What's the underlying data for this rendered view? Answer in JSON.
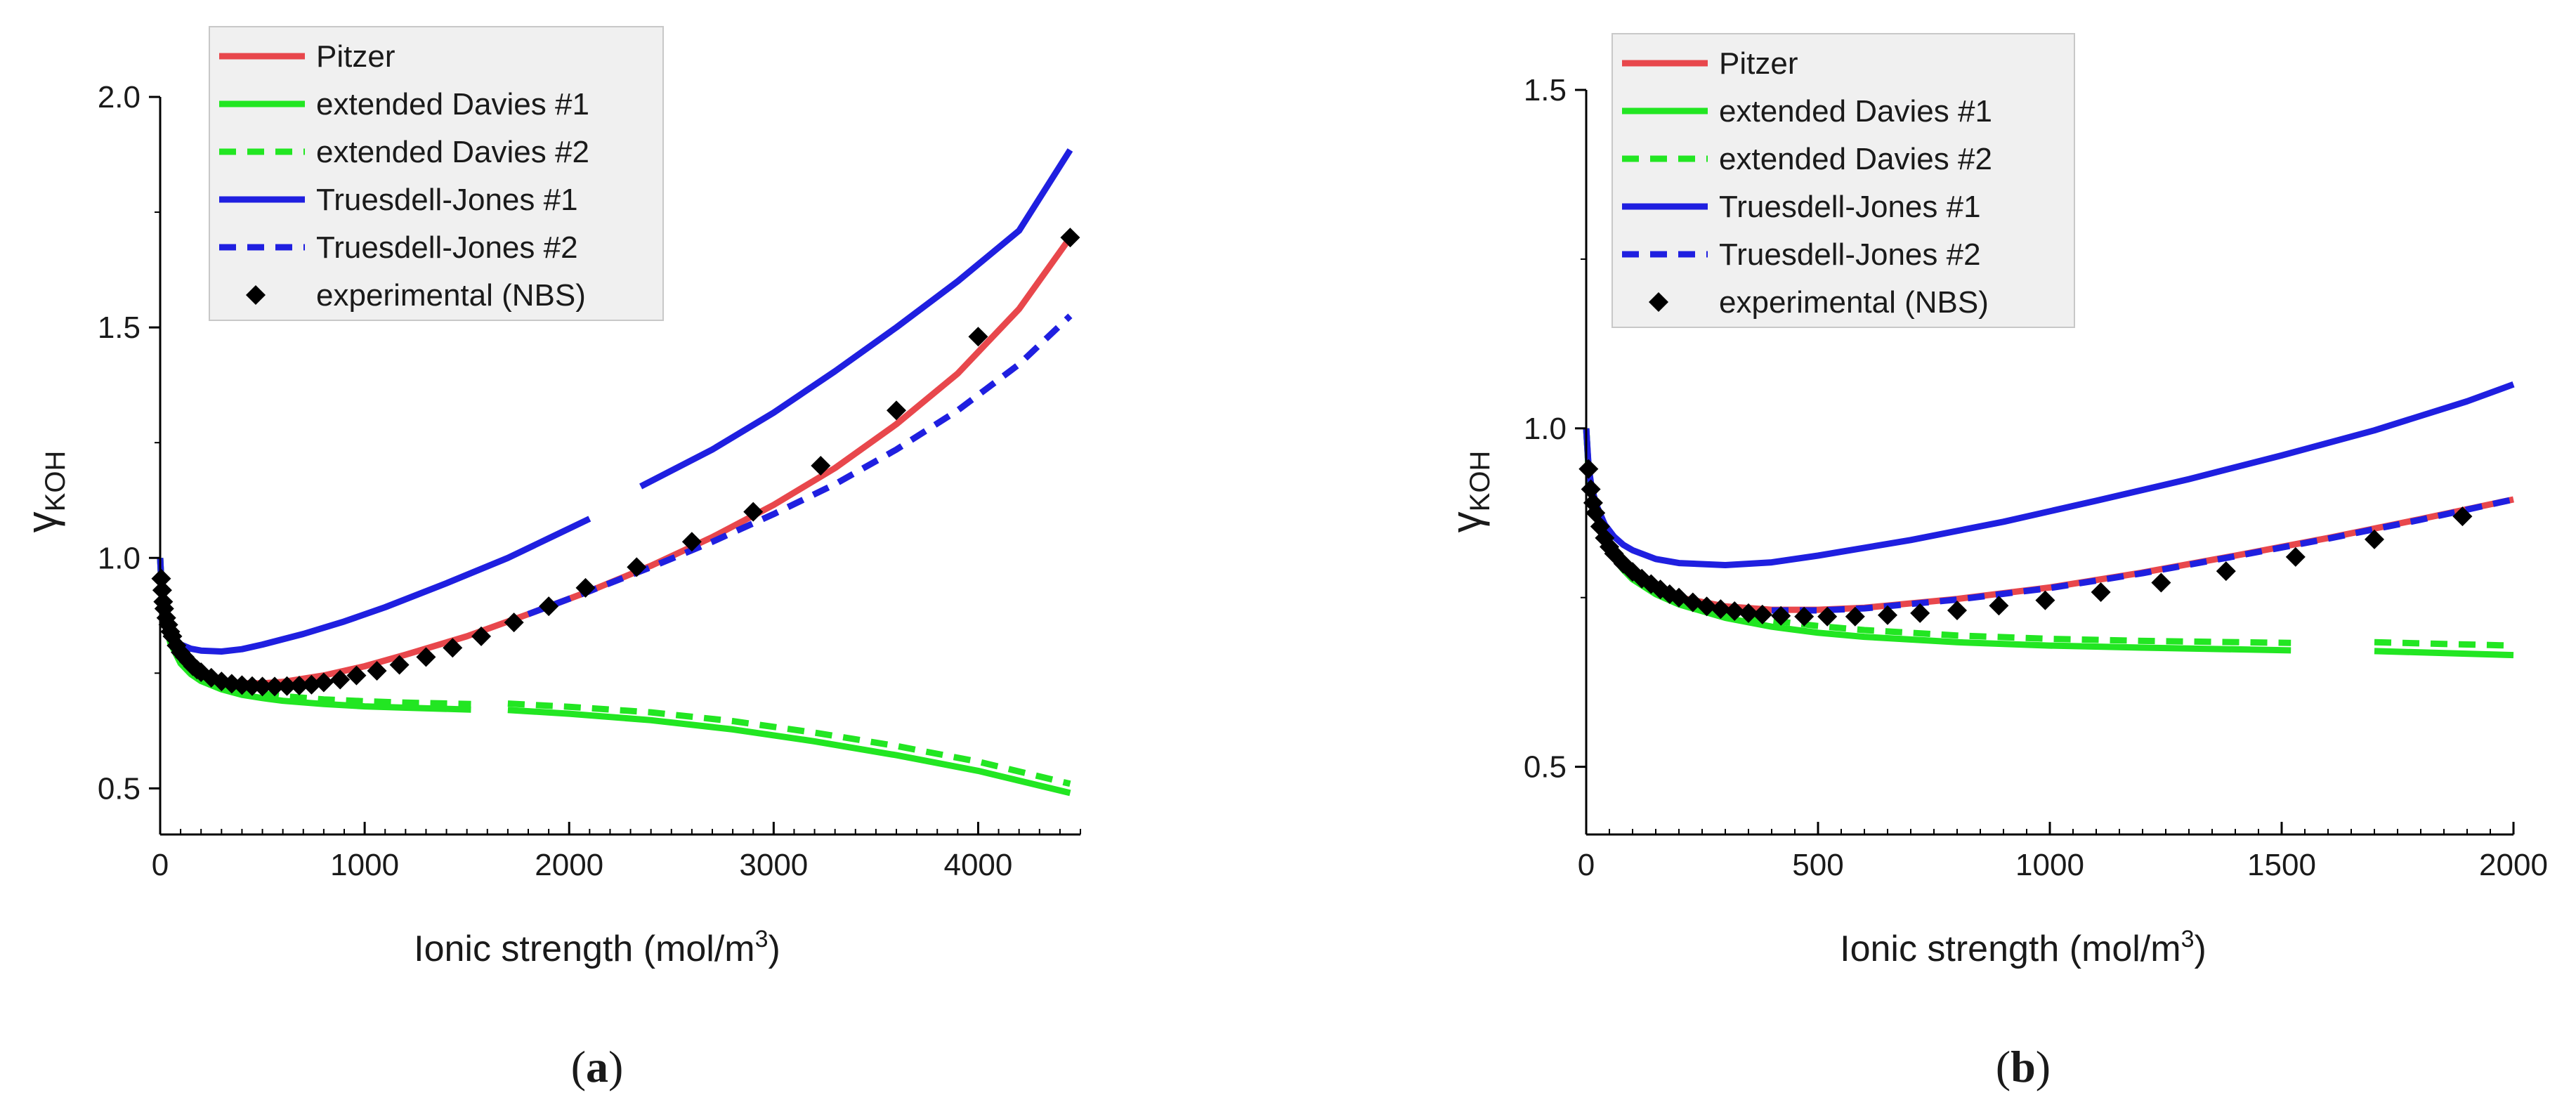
{
  "chart_data": [
    {
      "type": "line",
      "panel_label": "(a)",
      "panel_letter": "a",
      "xlabel": "Ionic strength (mol/m",
      "xlabel_sup": "3",
      "xlabel_end": ")",
      "ylabel_main": "γ",
      "ylabel_sub": "KOH",
      "xlim": [
        0,
        4500
      ],
      "ylim": [
        0.4,
        2.0
      ],
      "xticks": [
        0,
        1000,
        2000,
        3000,
        4000
      ],
      "xtick_labels": [
        "0",
        "1000",
        "2000",
        "3000",
        "4000"
      ],
      "xminor_step": 100,
      "yticks": [
        0.5,
        1.0,
        1.5,
        2.0
      ],
      "ytick_labels": [
        "0.5",
        "1.0",
        "1.5",
        "2.0"
      ],
      "legend_position": "top-left",
      "legend": [
        "Pitzer",
        "extended Davies #1",
        "extended Davies #2",
        "Truesdell-Jones #1",
        "Truesdell-Jones #2",
        "experimental (NBS)"
      ],
      "series": [
        {
          "name": "Pitzer",
          "style": "solid",
          "color": "#e8474c",
          "x": [
            0,
            10,
            25,
            50,
            100,
            150,
            200,
            300,
            400,
            500,
            600,
            800,
            1000,
            1200,
            1500,
            1800,
            2100,
            2400,
            2700,
            3000,
            3300,
            3600,
            3900,
            4200,
            4450
          ],
          "y": [
            1.0,
            0.905,
            0.858,
            0.818,
            0.778,
            0.758,
            0.745,
            0.732,
            0.728,
            0.728,
            0.731,
            0.745,
            0.765,
            0.79,
            0.83,
            0.878,
            0.928,
            0.983,
            1.045,
            1.115,
            1.195,
            1.29,
            1.4,
            1.54,
            1.695
          ]
        },
        {
          "name": "extended Davies #1",
          "style": "solid",
          "color": "#22e622",
          "x": [
            0,
            10,
            25,
            50,
            100,
            150,
            200,
            300,
            400,
            500,
            600,
            800,
            1000,
            1200,
            1520,
            null,
            1700,
            2000,
            2400,
            2800,
            3200,
            3600,
            4000,
            4450
          ],
          "y": [
            1.0,
            0.905,
            0.858,
            0.815,
            0.771,
            0.748,
            0.733,
            0.715,
            0.703,
            0.696,
            0.69,
            0.683,
            0.678,
            0.675,
            0.671,
            null,
            0.67,
            0.662,
            0.648,
            0.628,
            0.602,
            0.572,
            0.538,
            0.49
          ]
        },
        {
          "name": "extended Davies #2",
          "style": "dashed",
          "color": "#22e622",
          "x": [
            0,
            10,
            25,
            50,
            100,
            150,
            200,
            300,
            400,
            500,
            600,
            800,
            1000,
            1200,
            1520,
            null,
            1700,
            2000,
            2400,
            2800,
            3200,
            3600,
            4000,
            4450
          ],
          "y": [
            1.0,
            0.906,
            0.86,
            0.818,
            0.775,
            0.753,
            0.739,
            0.723,
            0.712,
            0.706,
            0.7,
            0.693,
            0.689,
            0.686,
            0.683,
            null,
            0.684,
            0.677,
            0.665,
            0.646,
            0.621,
            0.592,
            0.558,
            0.51
          ]
        },
        {
          "name": "Truesdell-Jones #1",
          "style": "solid",
          "color": "#1f1fe0",
          "x": [
            0,
            10,
            25,
            50,
            100,
            150,
            200,
            300,
            400,
            500,
            700,
            900,
            1100,
            1400,
            1700,
            2100,
            null,
            2350,
            2700,
            3000,
            3300,
            3600,
            3900,
            4200,
            4450
          ],
          "y": [
            1.0,
            0.91,
            0.868,
            0.838,
            0.812,
            0.803,
            0.799,
            0.797,
            0.802,
            0.812,
            0.835,
            0.862,
            0.893,
            0.945,
            1.0,
            1.085,
            null,
            1.155,
            1.235,
            1.315,
            1.405,
            1.5,
            1.6,
            1.71,
            1.885
          ]
        },
        {
          "name": "Truesdell-Jones #2",
          "style": "dashed",
          "color": "#1f1fe0",
          "x": [
            1800,
            2100,
            2400,
            2700,
            3000,
            3300,
            3600,
            3900,
            4200,
            4450
          ],
          "y": [
            0.878,
            0.928,
            0.98,
            1.035,
            1.095,
            1.16,
            1.235,
            1.32,
            1.42,
            1.525
          ]
        },
        {
          "name": "experimental (NBS)",
          "style": "markers",
          "color": "#000000",
          "x": [
            5,
            10,
            15,
            20,
            30,
            40,
            50,
            60,
            80,
            100,
            120,
            140,
            160,
            180,
            200,
            250,
            300,
            350,
            400,
            450,
            500,
            560,
            620,
            680,
            740,
            800,
            880,
            960,
            1060,
            1170,
            1300,
            1430,
            1570,
            1730,
            1900,
            2080,
            2330,
            2600,
            2900,
            3230,
            3600,
            4000,
            4450
          ],
          "y": [
            0.955,
            0.93,
            0.905,
            0.89,
            0.87,
            0.855,
            0.84,
            0.83,
            0.81,
            0.795,
            0.785,
            0.775,
            0.765,
            0.758,
            0.752,
            0.74,
            0.732,
            0.727,
            0.724,
            0.722,
            0.721,
            0.721,
            0.722,
            0.723,
            0.725,
            0.73,
            0.736,
            0.745,
            0.755,
            0.768,
            0.785,
            0.805,
            0.83,
            0.86,
            0.895,
            0.935,
            0.98,
            1.035,
            1.1,
            1.2,
            1.32,
            1.48,
            1.695
          ]
        }
      ]
    },
    {
      "type": "line",
      "panel_label": "(b)",
      "panel_letter": "b",
      "xlabel": "Ionic strength (mol/m",
      "xlabel_sup": "3",
      "xlabel_end": ")",
      "ylabel_main": "γ",
      "ylabel_sub": "KOH",
      "xlim": [
        0,
        2000
      ],
      "ylim": [
        0.4,
        1.5
      ],
      "xticks": [
        0,
        500,
        1000,
        1500,
        2000
      ],
      "xtick_labels": [
        "0",
        "500",
        "1000",
        "1500",
        "2000"
      ],
      "xminor_step": 50,
      "yticks": [
        0.5,
        1.0,
        1.5
      ],
      "ytick_labels": [
        "0.5",
        "1.0",
        "1.5"
      ],
      "legend_position": "top-left",
      "legend": [
        "Pitzer",
        "extended Davies #1",
        "extended Davies #2",
        "Truesdell-Jones #1",
        "Truesdell-Jones #2",
        "experimental (NBS)"
      ],
      "series": [
        {
          "name": "Pitzer",
          "style": "solid",
          "color": "#e8474c",
          "x": [
            0,
            5,
            10,
            20,
            40,
            60,
            80,
            100,
            150,
            200,
            300,
            400,
            500,
            600,
            800,
            1000,
            1200,
            1400,
            1600,
            1800,
            2000
          ],
          "y": [
            1.0,
            0.94,
            0.91,
            0.875,
            0.835,
            0.812,
            0.795,
            0.782,
            0.762,
            0.75,
            0.737,
            0.732,
            0.732,
            0.735,
            0.748,
            0.765,
            0.787,
            0.812,
            0.838,
            0.866,
            0.895
          ]
        },
        {
          "name": "extended Davies #1",
          "style": "solid",
          "color": "#22e622",
          "x": [
            0,
            5,
            10,
            20,
            40,
            60,
            80,
            100,
            150,
            200,
            300,
            400,
            500,
            600,
            800,
            1000,
            1200,
            1520,
            null,
            1700,
            2000
          ],
          "y": [
            1.0,
            0.94,
            0.91,
            0.874,
            0.832,
            0.808,
            0.791,
            0.777,
            0.755,
            0.74,
            0.72,
            0.707,
            0.698,
            0.692,
            0.684,
            0.679,
            0.676,
            0.672,
            null,
            0.671,
            0.665
          ]
        },
        {
          "name": "extended Davies #2",
          "style": "dashed",
          "color": "#22e622",
          "x": [
            0,
            5,
            10,
            20,
            40,
            60,
            80,
            100,
            150,
            200,
            300,
            400,
            500,
            600,
            800,
            1000,
            1200,
            1520,
            null,
            1700,
            2000
          ],
          "y": [
            1.0,
            0.941,
            0.911,
            0.876,
            0.835,
            0.812,
            0.795,
            0.781,
            0.76,
            0.746,
            0.728,
            0.716,
            0.708,
            0.702,
            0.694,
            0.689,
            0.686,
            0.683,
            null,
            0.684,
            0.679
          ]
        },
        {
          "name": "Truesdell-Jones #1",
          "style": "solid",
          "color": "#1f1fe0",
          "x": [
            0,
            5,
            10,
            20,
            40,
            60,
            80,
            100,
            150,
            200,
            300,
            400,
            500,
            700,
            900,
            1100,
            1300,
            1500,
            1700,
            1900,
            2000
          ],
          "y": [
            1.0,
            0.945,
            0.92,
            0.89,
            0.858,
            0.84,
            0.828,
            0.82,
            0.807,
            0.801,
            0.798,
            0.802,
            0.812,
            0.835,
            0.862,
            0.893,
            0.925,
            0.96,
            0.997,
            1.04,
            1.065
          ]
        },
        {
          "name": "Truesdell-Jones #2",
          "style": "dashed",
          "color": "#1f1fe0",
          "x": [
            400,
            500,
            600,
            800,
            1000,
            1200,
            1400,
            1600,
            1800,
            2000
          ],
          "y": [
            0.731,
            0.731,
            0.734,
            0.747,
            0.764,
            0.786,
            0.811,
            0.837,
            0.865,
            0.895
          ]
        },
        {
          "name": "experimental (NBS)",
          "style": "markers",
          "color": "#000000",
          "x": [
            5,
            10,
            15,
            20,
            30,
            40,
            50,
            60,
            80,
            100,
            120,
            140,
            160,
            180,
            200,
            230,
            260,
            290,
            320,
            350,
            380,
            420,
            470,
            520,
            580,
            650,
            720,
            800,
            890,
            990,
            1110,
            1240,
            1380,
            1530,
            1700,
            1890
          ],
          "y": [
            0.94,
            0.91,
            0.89,
            0.875,
            0.855,
            0.838,
            0.825,
            0.815,
            0.8,
            0.788,
            0.778,
            0.77,
            0.762,
            0.755,
            0.75,
            0.743,
            0.737,
            0.733,
            0.73,
            0.727,
            0.725,
            0.723,
            0.722,
            0.722,
            0.722,
            0.724,
            0.727,
            0.731,
            0.738,
            0.746,
            0.758,
            0.772,
            0.789,
            0.81,
            0.836,
            0.87
          ]
        }
      ]
    }
  ]
}
